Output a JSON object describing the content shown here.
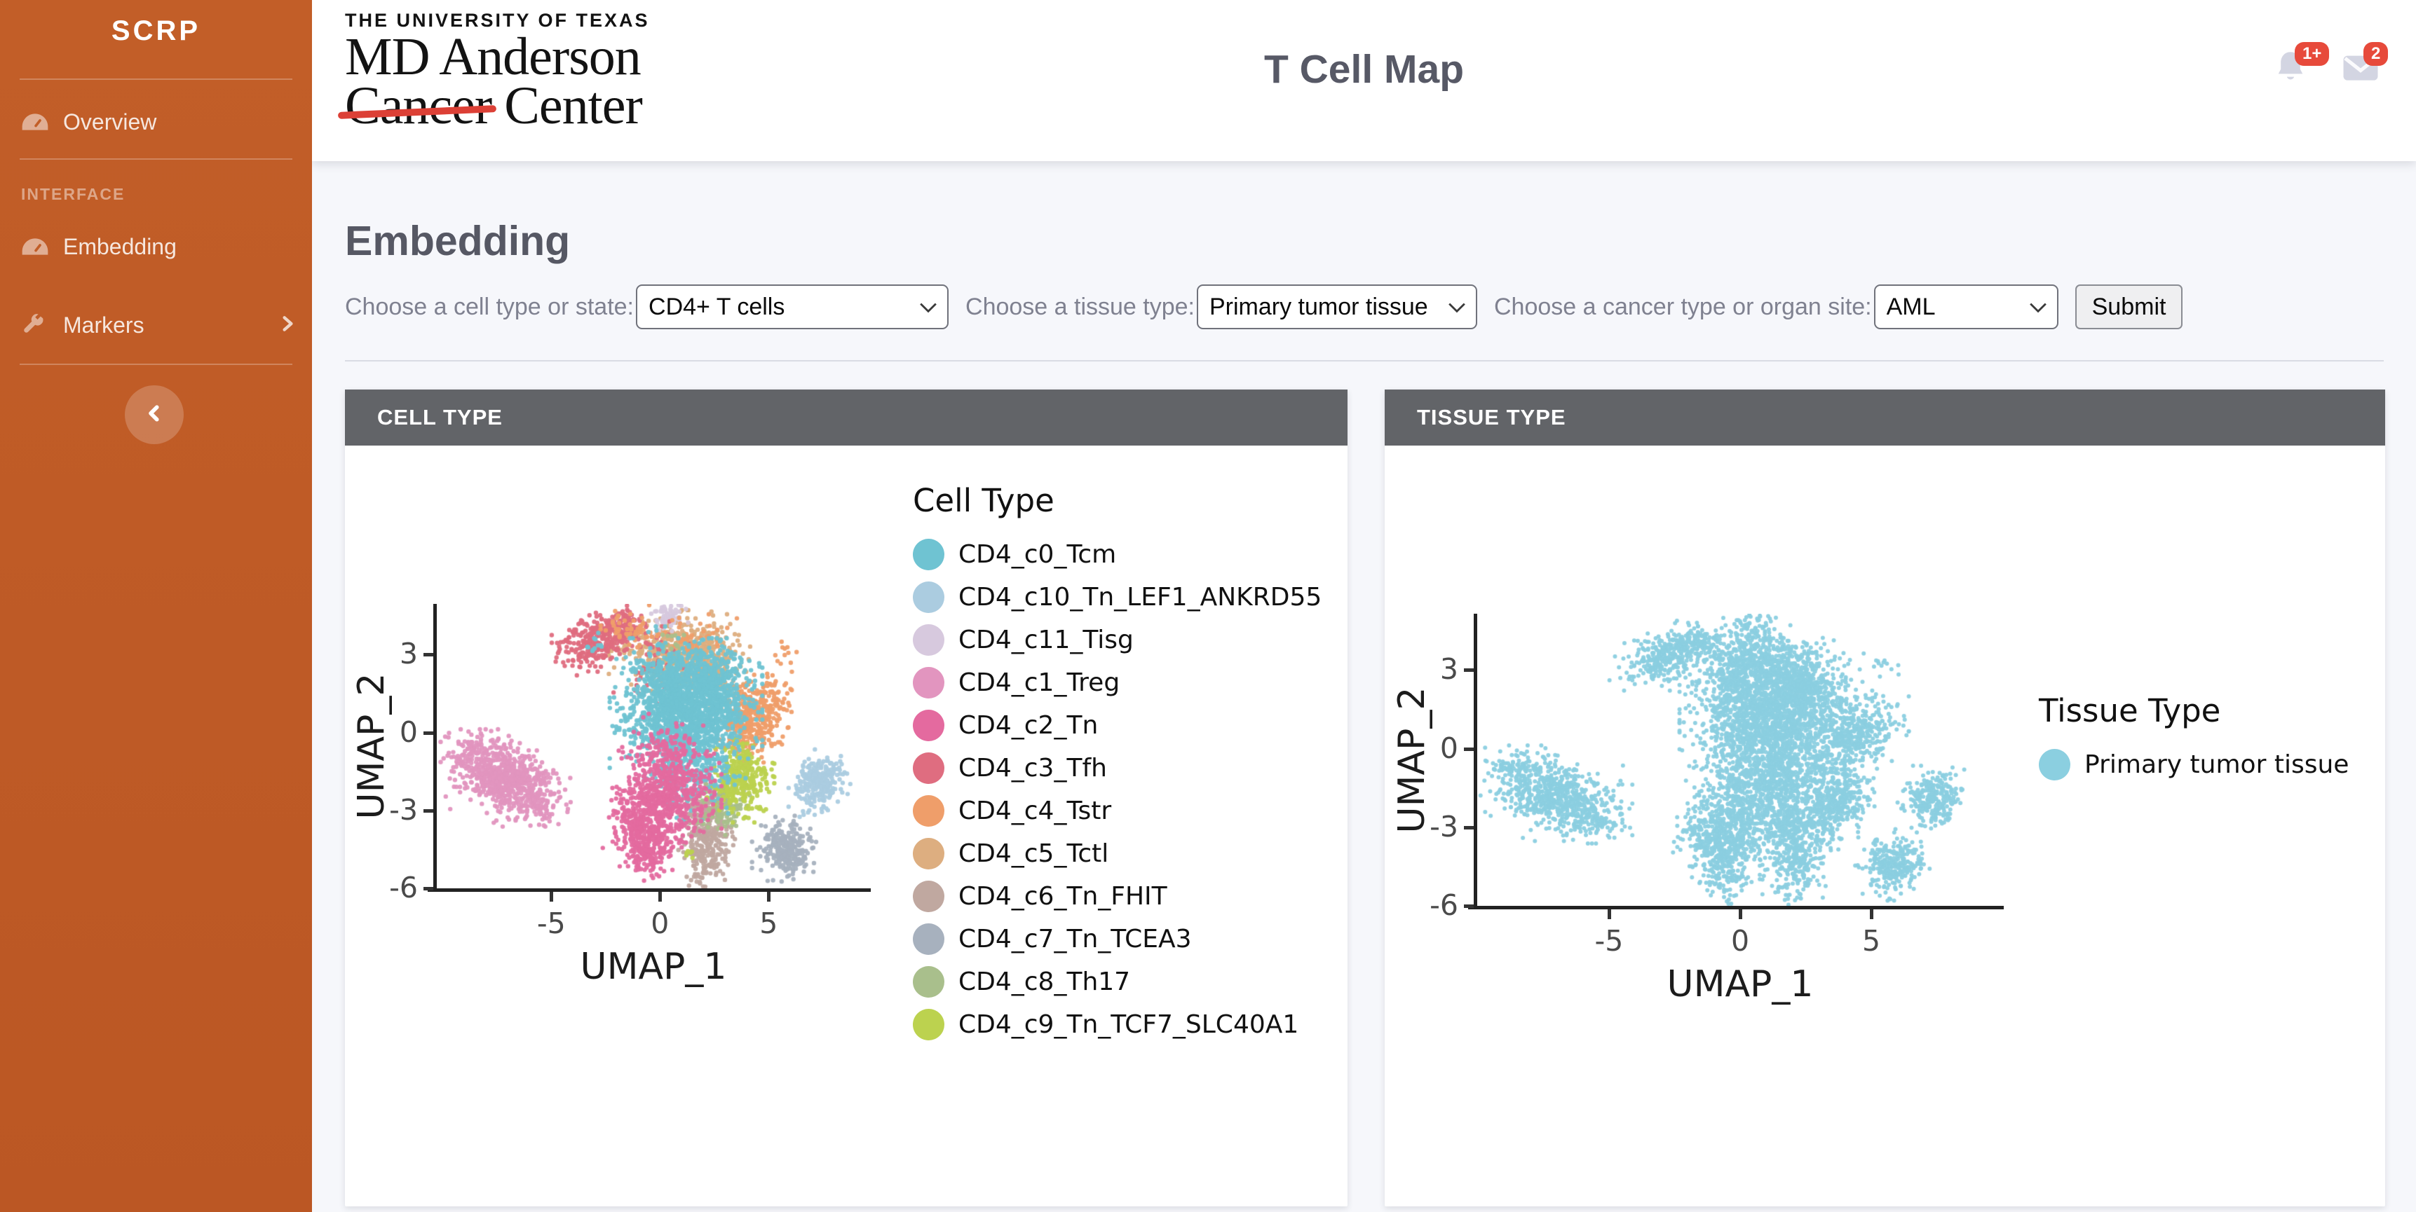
{
  "sidebar": {
    "brand": "SCRP",
    "section_label": "INTERFACE",
    "items": [
      {
        "label": "Overview",
        "icon": "gauge-icon"
      },
      {
        "label": "Embedding",
        "icon": "gauge-icon"
      },
      {
        "label": "Markers",
        "icon": "wrench-icon",
        "has_submenu": true
      }
    ]
  },
  "topbar": {
    "logo": {
      "line1": "THE UNIVERSITY OF TEXAS",
      "line2": "MD Anderson",
      "line3_struck": "Cancer",
      "line3_rest": "Center"
    },
    "title": "T Cell Map",
    "notifications_badge": "1+",
    "messages_badge": "2"
  },
  "main": {
    "heading": "Embedding",
    "controls": [
      {
        "label": "Choose a cell type or state:",
        "value": "CD4+ T cells"
      },
      {
        "label": "Choose a tissue type:",
        "value": "Primary tumor tissue"
      },
      {
        "label": "Choose a cancer type or organ site:",
        "value": "AML"
      }
    ],
    "submit_label": "Submit"
  },
  "chart_data": [
    {
      "type": "scatter",
      "title": "CELL TYPE",
      "xlabel": "UMAP_1",
      "ylabel": "UMAP_2",
      "x_ticks": [
        -5,
        0,
        5
      ],
      "y_ticks": [
        3,
        0,
        -3,
        -6
      ],
      "xlim": [
        -10.3,
        9.7
      ],
      "ylim": [
        -6,
        4.95
      ],
      "grid": false,
      "legend_title": "Cell Type",
      "legend_position": "right",
      "series": [
        {
          "name": "CD4_c0_Tcm",
          "color": "#6fc3d2",
          "clusters": [
            {
              "cx": 1.2,
              "cy": 0.9,
              "sx": 1.35,
              "sy": 1.05,
              "n": 1500
            },
            {
              "cx": 2.3,
              "cy": 2.1,
              "sx": 0.7,
              "sy": 0.6,
              "n": 250
            },
            {
              "cx": 1.6,
              "cy": -1.3,
              "sx": 0.9,
              "sy": 0.8,
              "n": 260
            },
            {
              "cx": 0.2,
              "cy": 2.0,
              "sx": 0.6,
              "sy": 0.8,
              "n": 150
            },
            {
              "cx": -2.9,
              "cy": 3.4,
              "sx": 0.3,
              "sy": 0.25,
              "n": 12
            }
          ]
        },
        {
          "name": "CD4_c10_Tn_LEF1_ANKRD55",
          "color": "#abcce0",
          "clusters": [
            {
              "cx": 7.35,
              "cy": -1.95,
              "sx": 0.55,
              "sy": 0.5,
              "n": 260,
              "corr": 0.2
            }
          ]
        },
        {
          "name": "CD4_c11_Tisg",
          "color": "#d7c9de",
          "clusters": [
            {
              "cx": 0.45,
              "cy": 4.5,
              "sx": 0.42,
              "sy": 0.3,
              "n": 80
            }
          ]
        },
        {
          "name": "CD4_c1_Treg",
          "color": "#e295bf",
          "clusters": [
            {
              "cx": -7.1,
              "cy": -1.75,
              "sx": 1.15,
              "sy": 0.72,
              "n": 750,
              "corr": -0.45
            },
            {
              "cx": -8.7,
              "cy": -0.6,
              "sx": 0.3,
              "sy": 0.25,
              "n": 25
            },
            {
              "cx": -5.6,
              "cy": -2.8,
              "sx": 0.35,
              "sy": 0.3,
              "n": 40
            }
          ]
        },
        {
          "name": "CD4_c2_Tn",
          "color": "#e46a9f",
          "clusters": [
            {
              "cx": 0.1,
              "cy": -2.7,
              "sx": 1.05,
              "sy": 0.85,
              "n": 600,
              "corr": 0.2
            },
            {
              "cx": -0.55,
              "cy": -4.4,
              "sx": 0.5,
              "sy": 0.65,
              "n": 230
            },
            {
              "cx": 0.4,
              "cy": -1.1,
              "sx": 0.9,
              "sy": 0.7,
              "n": 200
            },
            {
              "cx": -1.3,
              "cy": -3.3,
              "sx": 0.4,
              "sy": 0.5,
              "n": 80
            }
          ]
        },
        {
          "name": "CD4_c3_Tfh",
          "color": "#df6d80",
          "clusters": [
            {
              "cx": -2.9,
              "cy": 3.5,
              "sx": 0.8,
              "sy": 0.5,
              "n": 300,
              "corr": 0.35
            },
            {
              "cx": -1.7,
              "cy": 4.1,
              "sx": 0.45,
              "sy": 0.3,
              "n": 70
            },
            {
              "cx": -0.2,
              "cy": 2.6,
              "sx": 0.8,
              "sy": 0.8,
              "n": 70
            }
          ]
        },
        {
          "name": "CD4_c4_Tstr",
          "color": "#ef9e6a",
          "clusters": [
            {
              "cx": 4.35,
              "cy": 0.6,
              "sx": 0.8,
              "sy": 0.75,
              "n": 420,
              "corr": 0.25
            },
            {
              "cx": -1.3,
              "cy": 4.05,
              "sx": 0.55,
              "sy": 0.3,
              "n": 45
            },
            {
              "cx": 1.2,
              "cy": 3.6,
              "sx": 0.9,
              "sy": 0.5,
              "n": 60
            },
            {
              "cx": 5.6,
              "cy": 3.1,
              "sx": 0.35,
              "sy": 0.3,
              "n": 12
            }
          ]
        },
        {
          "name": "CD4_c5_Tctl",
          "color": "#ddae80",
          "clusters": [
            {
              "cx": 0.9,
              "cy": 3.15,
              "sx": 1.25,
              "sy": 0.6,
              "n": 480
            },
            {
              "cx": 2.3,
              "cy": 2.5,
              "sx": 0.55,
              "sy": 0.45,
              "n": 110
            }
          ]
        },
        {
          "name": "CD4_c6_Tn_FHIT",
          "color": "#c0a8a0",
          "clusters": [
            {
              "cx": 2.15,
              "cy": -4.1,
              "sx": 0.5,
              "sy": 0.8,
              "n": 300,
              "corr": 0.1
            },
            {
              "cx": 1.7,
              "cy": -2.8,
              "sx": 0.45,
              "sy": 0.4,
              "n": 80
            }
          ]
        },
        {
          "name": "CD4_c7_Tn_TCEA3",
          "color": "#a7b1be",
          "clusters": [
            {
              "cx": 5.85,
              "cy": -4.5,
              "sx": 0.62,
              "sy": 0.5,
              "n": 280
            }
          ]
        },
        {
          "name": "CD4_c8_Th17",
          "color": "#a9bf8c",
          "clusters": [
            {
              "cx": 2.9,
              "cy": -2.85,
              "sx": 0.5,
              "sy": 0.5,
              "n": 120
            },
            {
              "cx": 0.6,
              "cy": 2.9,
              "sx": 0.4,
              "sy": 0.4,
              "n": 25
            }
          ]
        },
        {
          "name": "CD4_c9_Tn_TCF7_SLC40A1",
          "color": "#bcd24f",
          "clusters": [
            {
              "cx": 3.7,
              "cy": -1.85,
              "sx": 0.6,
              "sy": 0.62,
              "n": 320
            },
            {
              "cx": 1.3,
              "cy": -4.6,
              "sx": 0.15,
              "sy": 0.15,
              "n": 6
            }
          ]
        }
      ]
    },
    {
      "type": "scatter",
      "title": "TISSUE TYPE",
      "xlabel": "UMAP_1",
      "ylabel": "UMAP_2",
      "x_ticks": [
        -5,
        0,
        5
      ],
      "y_ticks": [
        3,
        0,
        -3,
        -6
      ],
      "xlim": [
        -10.05,
        10.05
      ],
      "ylim": [
        -6,
        5.15
      ],
      "grid": false,
      "legend_title": "Tissue Type",
      "legend_position": "right",
      "series": [
        {
          "name": "Primary tumor tissue",
          "color": "#8bcfe0",
          "clusters": [
            {
              "cx": 1.2,
              "cy": 0.9,
              "sx": 1.35,
              "sy": 1.05,
              "n": 1500
            },
            {
              "cx": 2.3,
              "cy": 2.1,
              "sx": 0.7,
              "sy": 0.6,
              "n": 250
            },
            {
              "cx": 1.6,
              "cy": -1.3,
              "sx": 0.9,
              "sy": 0.8,
              "n": 260
            },
            {
              "cx": 0.2,
              "cy": 2.0,
              "sx": 0.6,
              "sy": 0.8,
              "n": 150
            },
            {
              "cx": 0.9,
              "cy": 3.15,
              "sx": 1.25,
              "sy": 0.6,
              "n": 480
            },
            {
              "cx": 2.3,
              "cy": 2.5,
              "sx": 0.55,
              "sy": 0.45,
              "n": 110
            },
            {
              "cx": -2.9,
              "cy": 3.5,
              "sx": 0.8,
              "sy": 0.5,
              "n": 300,
              "corr": 0.35
            },
            {
              "cx": -1.7,
              "cy": 4.1,
              "sx": 0.45,
              "sy": 0.3,
              "n": 70
            },
            {
              "cx": -0.2,
              "cy": 2.6,
              "sx": 0.8,
              "sy": 0.8,
              "n": 70
            },
            {
              "cx": 0.45,
              "cy": 4.5,
              "sx": 0.42,
              "sy": 0.3,
              "n": 80
            },
            {
              "cx": -7.1,
              "cy": -1.75,
              "sx": 1.15,
              "sy": 0.72,
              "n": 750,
              "corr": -0.45
            },
            {
              "cx": -8.7,
              "cy": -0.6,
              "sx": 0.3,
              "sy": 0.25,
              "n": 25
            },
            {
              "cx": -5.6,
              "cy": -2.8,
              "sx": 0.35,
              "sy": 0.3,
              "n": 40
            },
            {
              "cx": 0.1,
              "cy": -2.7,
              "sx": 1.05,
              "sy": 0.85,
              "n": 600,
              "corr": 0.2
            },
            {
              "cx": -0.55,
              "cy": -4.4,
              "sx": 0.5,
              "sy": 0.65,
              "n": 230
            },
            {
              "cx": 0.4,
              "cy": -1.1,
              "sx": 0.9,
              "sy": 0.7,
              "n": 200
            },
            {
              "cx": -1.3,
              "cy": -3.3,
              "sx": 0.4,
              "sy": 0.5,
              "n": 80
            },
            {
              "cx": 4.35,
              "cy": 0.6,
              "sx": 0.8,
              "sy": 0.75,
              "n": 420,
              "corr": 0.25
            },
            {
              "cx": -1.3,
              "cy": 4.05,
              "sx": 0.55,
              "sy": 0.3,
              "n": 45
            },
            {
              "cx": 1.2,
              "cy": 3.6,
              "sx": 0.9,
              "sy": 0.5,
              "n": 60
            },
            {
              "cx": 5.6,
              "cy": 3.1,
              "sx": 0.35,
              "sy": 0.3,
              "n": 12
            },
            {
              "cx": 2.15,
              "cy": -4.1,
              "sx": 0.5,
              "sy": 0.8,
              "n": 300,
              "corr": 0.1
            },
            {
              "cx": 1.7,
              "cy": -2.8,
              "sx": 0.45,
              "sy": 0.4,
              "n": 80
            },
            {
              "cx": 5.85,
              "cy": -4.5,
              "sx": 0.62,
              "sy": 0.5,
              "n": 280
            },
            {
              "cx": 2.9,
              "cy": -2.85,
              "sx": 0.5,
              "sy": 0.5,
              "n": 120
            },
            {
              "cx": 3.7,
              "cy": -1.85,
              "sx": 0.6,
              "sy": 0.62,
              "n": 320
            },
            {
              "cx": 7.35,
              "cy": -1.95,
              "sx": 0.55,
              "sy": 0.5,
              "n": 260,
              "corr": 0.2
            },
            {
              "cx": 1.9,
              "cy": -5.55,
              "sx": 0.12,
              "sy": 0.12,
              "n": 4
            }
          ]
        }
      ]
    }
  ]
}
